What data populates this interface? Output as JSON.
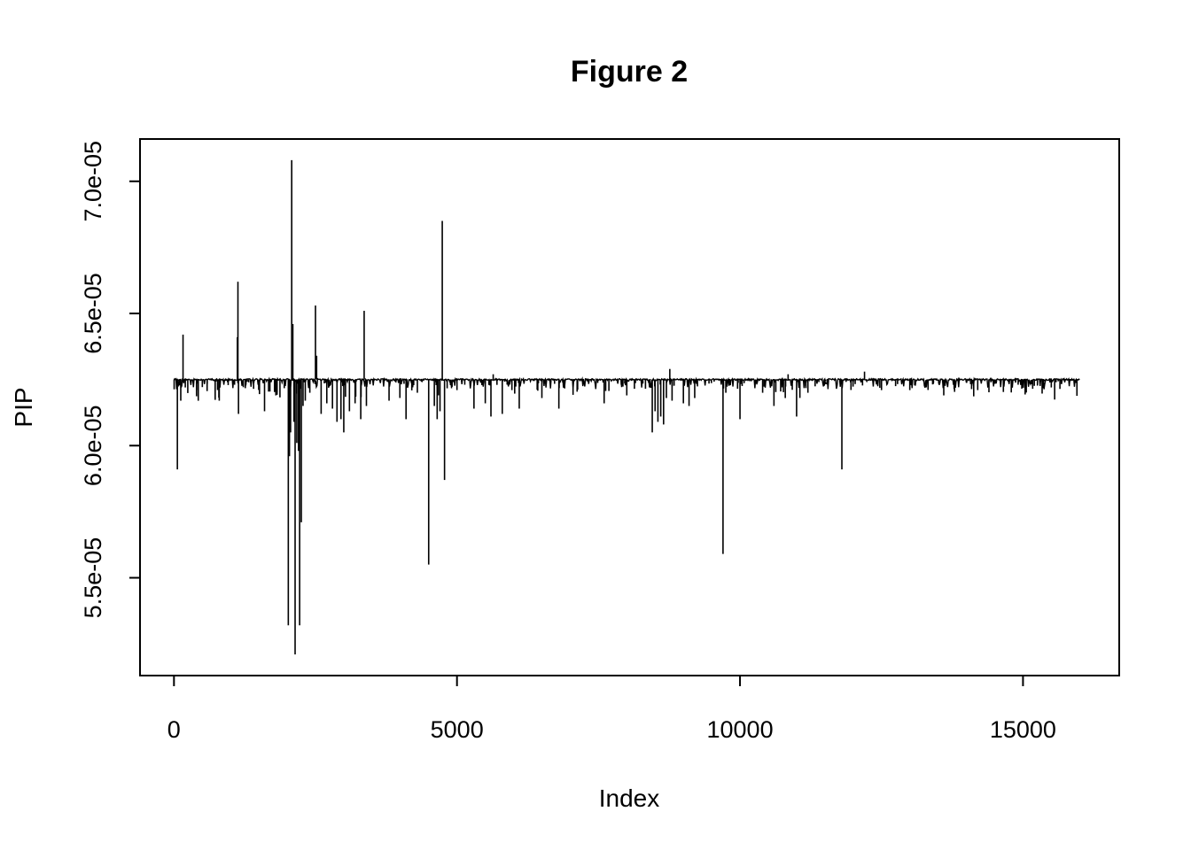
{
  "chart_data": {
    "type": "line",
    "title": "Figure 2",
    "xlabel": "Index",
    "ylabel": "PIP",
    "xlim": [
      -600,
      16700
    ],
    "ylim": [
      5.13e-05,
      7.16e-05
    ],
    "x_ticks": [
      0,
      5000,
      10000,
      15000
    ],
    "x_tick_labels": [
      "0",
      "5000",
      "10000",
      "15000"
    ],
    "y_ticks": [
      5.5e-05,
      6e-05,
      6.5e-05,
      7e-05
    ],
    "y_tick_labels": [
      "5.5e-05",
      "6.0e-05",
      "6.5e-05",
      "7.0e-05"
    ],
    "grid": false,
    "baseline_value": 6.25e-05,
    "x_range": [
      1,
      16000
    ],
    "spikes": [
      {
        "x": 60,
        "y": 5.91e-05
      },
      {
        "x": 120,
        "y": 6.17e-05
      },
      {
        "x": 160,
        "y": 6.42e-05
      },
      {
        "x": 200,
        "y": 6.22e-05
      },
      {
        "x": 400,
        "y": 6.21e-05
      },
      {
        "x": 800,
        "y": 6.17e-05
      },
      {
        "x": 1130,
        "y": 6.62e-05
      },
      {
        "x": 1140,
        "y": 6.12e-05
      },
      {
        "x": 1120,
        "y": 6.41e-05
      },
      {
        "x": 1600,
        "y": 6.13e-05
      },
      {
        "x": 1800,
        "y": 6.19e-05
      },
      {
        "x": 2020,
        "y": 5.32e-05
      },
      {
        "x": 2040,
        "y": 5.96e-05
      },
      {
        "x": 2060,
        "y": 6.05e-05
      },
      {
        "x": 2080,
        "y": 7.08e-05
      },
      {
        "x": 2100,
        "y": 6.46e-05
      },
      {
        "x": 2120,
        "y": 6.09e-05
      },
      {
        "x": 2140,
        "y": 5.21e-05
      },
      {
        "x": 2170,
        "y": 6.01e-05
      },
      {
        "x": 2200,
        "y": 5.98e-05
      },
      {
        "x": 2220,
        "y": 5.32e-05
      },
      {
        "x": 2250,
        "y": 5.71e-05
      },
      {
        "x": 2280,
        "y": 6.15e-05
      },
      {
        "x": 2320,
        "y": 6.17e-05
      },
      {
        "x": 2400,
        "y": 6.2e-05
      },
      {
        "x": 2500,
        "y": 6.53e-05
      },
      {
        "x": 2520,
        "y": 6.34e-05
      },
      {
        "x": 2600,
        "y": 6.12e-05
      },
      {
        "x": 2700,
        "y": 6.16e-05
      },
      {
        "x": 2800,
        "y": 6.14e-05
      },
      {
        "x": 2880,
        "y": 6.09e-05
      },
      {
        "x": 2950,
        "y": 6.1e-05
      },
      {
        "x": 3000,
        "y": 6.05e-05
      },
      {
        "x": 3100,
        "y": 6.13e-05
      },
      {
        "x": 3200,
        "y": 6.16e-05
      },
      {
        "x": 3300,
        "y": 6.1e-05
      },
      {
        "x": 3360,
        "y": 6.51e-05
      },
      {
        "x": 3400,
        "y": 6.15e-05
      },
      {
        "x": 3800,
        "y": 6.17e-05
      },
      {
        "x": 4100,
        "y": 6.1e-05
      },
      {
        "x": 4300,
        "y": 6.2e-05
      },
      {
        "x": 4500,
        "y": 5.55e-05
      },
      {
        "x": 4600,
        "y": 6.15e-05
      },
      {
        "x": 4650,
        "y": 6.1e-05
      },
      {
        "x": 4700,
        "y": 6.13e-05
      },
      {
        "x": 4740,
        "y": 6.85e-05
      },
      {
        "x": 4780,
        "y": 5.87e-05
      },
      {
        "x": 5000,
        "y": 6.21e-05
      },
      {
        "x": 5300,
        "y": 6.14e-05
      },
      {
        "x": 5500,
        "y": 6.16e-05
      },
      {
        "x": 5600,
        "y": 6.11e-05
      },
      {
        "x": 5640,
        "y": 6.27e-05
      },
      {
        "x": 5800,
        "y": 6.12e-05
      },
      {
        "x": 6100,
        "y": 6.14e-05
      },
      {
        "x": 6500,
        "y": 6.18e-05
      },
      {
        "x": 6800,
        "y": 6.14e-05
      },
      {
        "x": 7600,
        "y": 6.16e-05
      },
      {
        "x": 8000,
        "y": 6.19e-05
      },
      {
        "x": 8450,
        "y": 6.05e-05
      },
      {
        "x": 8500,
        "y": 6.13e-05
      },
      {
        "x": 8550,
        "y": 6.09e-05
      },
      {
        "x": 8600,
        "y": 6.11e-05
      },
      {
        "x": 8650,
        "y": 6.08e-05
      },
      {
        "x": 8700,
        "y": 6.18e-05
      },
      {
        "x": 8760,
        "y": 6.29e-05
      },
      {
        "x": 8800,
        "y": 6.17e-05
      },
      {
        "x": 9000,
        "y": 6.16e-05
      },
      {
        "x": 9100,
        "y": 6.15e-05
      },
      {
        "x": 9200,
        "y": 6.18e-05
      },
      {
        "x": 9700,
        "y": 5.59e-05
      },
      {
        "x": 9750,
        "y": 6.2e-05
      },
      {
        "x": 10000,
        "y": 6.1e-05
      },
      {
        "x": 10400,
        "y": 6.2e-05
      },
      {
        "x": 10600,
        "y": 6.15e-05
      },
      {
        "x": 10800,
        "y": 6.18e-05
      },
      {
        "x": 10850,
        "y": 6.27e-05
      },
      {
        "x": 11000,
        "y": 6.11e-05
      },
      {
        "x": 11200,
        "y": 6.2e-05
      },
      {
        "x": 11800,
        "y": 5.91e-05
      },
      {
        "x": 12200,
        "y": 6.28e-05
      },
      {
        "x": 12500,
        "y": 6.21e-05
      },
      {
        "x": 13000,
        "y": 6.21e-05
      },
      {
        "x": 13600,
        "y": 6.19e-05
      },
      {
        "x": 14200,
        "y": 6.21e-05
      },
      {
        "x": 15000,
        "y": 6.22e-05
      },
      {
        "x": 15500,
        "y": 6.22e-05
      }
    ]
  }
}
